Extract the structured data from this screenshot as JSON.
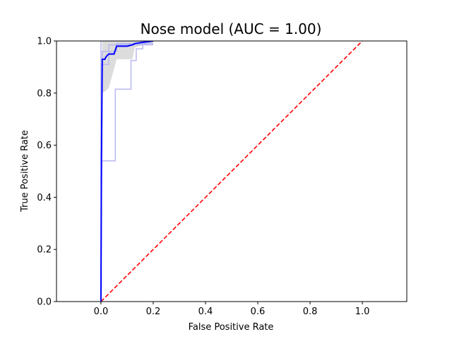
{
  "chart_data": {
    "type": "line",
    "title": "Nose model (AUC = 1.00)",
    "xlabel": "False Positive Rate",
    "ylabel": "True Positive Rate",
    "xlim": [
      -0.17,
      1.17
    ],
    "ylim": [
      0.0,
      1.0
    ],
    "xticks": [
      0.0,
      0.2,
      0.4,
      0.6,
      0.8,
      1.0
    ],
    "xtick_labels": [
      "0.0",
      "0.2",
      "0.4",
      "0.6",
      "0.8",
      "1.0"
    ],
    "yticks": [
      0.0,
      0.2,
      0.4,
      0.6,
      0.8,
      1.0
    ],
    "ytick_labels": [
      "0.0",
      "0.2",
      "0.4",
      "0.6",
      "0.8",
      "1.0"
    ],
    "grid": false,
    "legend": null,
    "colors": {
      "mean_roc": "#0000ff",
      "fold_roc": "#b8b8f0",
      "chance": "#ff0000",
      "std_band": "#bfbfbf"
    },
    "series": [
      {
        "role": "mean",
        "points": [
          [
            0.0,
            0.0
          ],
          [
            0.002,
            0.55
          ],
          [
            0.005,
            0.93
          ],
          [
            0.015,
            0.93
          ],
          [
            0.02,
            0.94
          ],
          [
            0.03,
            0.95
          ],
          [
            0.05,
            0.95
          ],
          [
            0.06,
            0.98
          ],
          [
            0.1,
            0.98
          ],
          [
            0.12,
            0.985
          ],
          [
            0.13,
            0.99
          ],
          [
            0.16,
            0.995
          ],
          [
            0.18,
            0.997
          ],
          [
            0.2,
            1.0
          ]
        ]
      },
      {
        "role": "fold",
        "points": [
          [
            0.0,
            0.0
          ],
          [
            0.0,
            1.0
          ],
          [
            0.2,
            1.0
          ]
        ]
      },
      {
        "role": "fold",
        "points": [
          [
            0.0,
            0.0
          ],
          [
            0.002,
            0.54
          ],
          [
            0.055,
            0.54
          ],
          [
            0.055,
            0.815
          ],
          [
            0.115,
            0.815
          ],
          [
            0.115,
            0.925
          ],
          [
            0.135,
            0.925
          ],
          [
            0.135,
            0.97
          ],
          [
            0.16,
            0.97
          ],
          [
            0.16,
            1.0
          ],
          [
            0.2,
            1.0
          ]
        ]
      },
      {
        "role": "fold",
        "points": [
          [
            0.0,
            0.0
          ],
          [
            0.005,
            0.91
          ],
          [
            0.03,
            0.91
          ],
          [
            0.03,
            0.985
          ],
          [
            0.2,
            0.985
          ]
        ]
      },
      {
        "role": "fold",
        "points": [
          [
            0.0,
            0.0
          ],
          [
            0.005,
            0.96
          ],
          [
            0.06,
            0.96
          ],
          [
            0.06,
            0.99
          ],
          [
            0.2,
            0.99
          ]
        ]
      },
      {
        "role": "chance",
        "points": [
          [
            0.0,
            0.0
          ],
          [
            1.0,
            1.0
          ]
        ]
      }
    ],
    "std_band": {
      "x": [
        0.0,
        0.005,
        0.02,
        0.03,
        0.06,
        0.12,
        0.13,
        0.16,
        0.2
      ],
      "upper": [
        0.0,
        1.0,
        1.0,
        1.0,
        1.0,
        1.0,
        1.0,
        1.0,
        1.0
      ],
      "lower": [
        0.0,
        0.8,
        0.81,
        0.82,
        0.93,
        0.93,
        0.975,
        0.985,
        0.99
      ]
    }
  }
}
